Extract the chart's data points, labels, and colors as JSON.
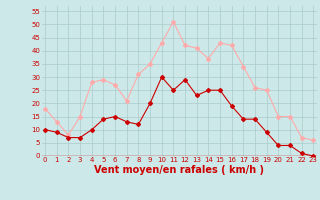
{
  "hours": [
    0,
    1,
    2,
    3,
    4,
    5,
    6,
    7,
    8,
    9,
    10,
    11,
    12,
    13,
    14,
    15,
    16,
    17,
    18,
    19,
    20,
    21,
    22,
    23
  ],
  "wind_avg": [
    10,
    9,
    7,
    7,
    10,
    14,
    15,
    13,
    12,
    20,
    30,
    25,
    29,
    23,
    25,
    25,
    19,
    14,
    14,
    9,
    4,
    4,
    1,
    0
  ],
  "wind_gust": [
    18,
    13,
    8,
    15,
    28,
    29,
    27,
    21,
    31,
    35,
    43,
    51,
    42,
    41,
    37,
    43,
    42,
    34,
    26,
    25,
    15,
    15,
    7,
    6
  ],
  "ylabel_values": [
    0,
    5,
    10,
    15,
    20,
    25,
    30,
    35,
    40,
    45,
    50,
    55
  ],
  "ylim": [
    0,
    57
  ],
  "xlim": [
    -0.3,
    23.3
  ],
  "color_avg": "#cc0000",
  "color_gust": "#ffaaaa",
  "bg_color": "#cce8e8",
  "grid_color": "#aacccc",
  "xlabel": "Vent moyen/en rafales ( km/h )",
  "xlabel_color": "#cc0000",
  "xlabel_fontsize": 7,
  "tick_fontsize": 5,
  "marker_size": 2.0,
  "line_width": 0.8
}
